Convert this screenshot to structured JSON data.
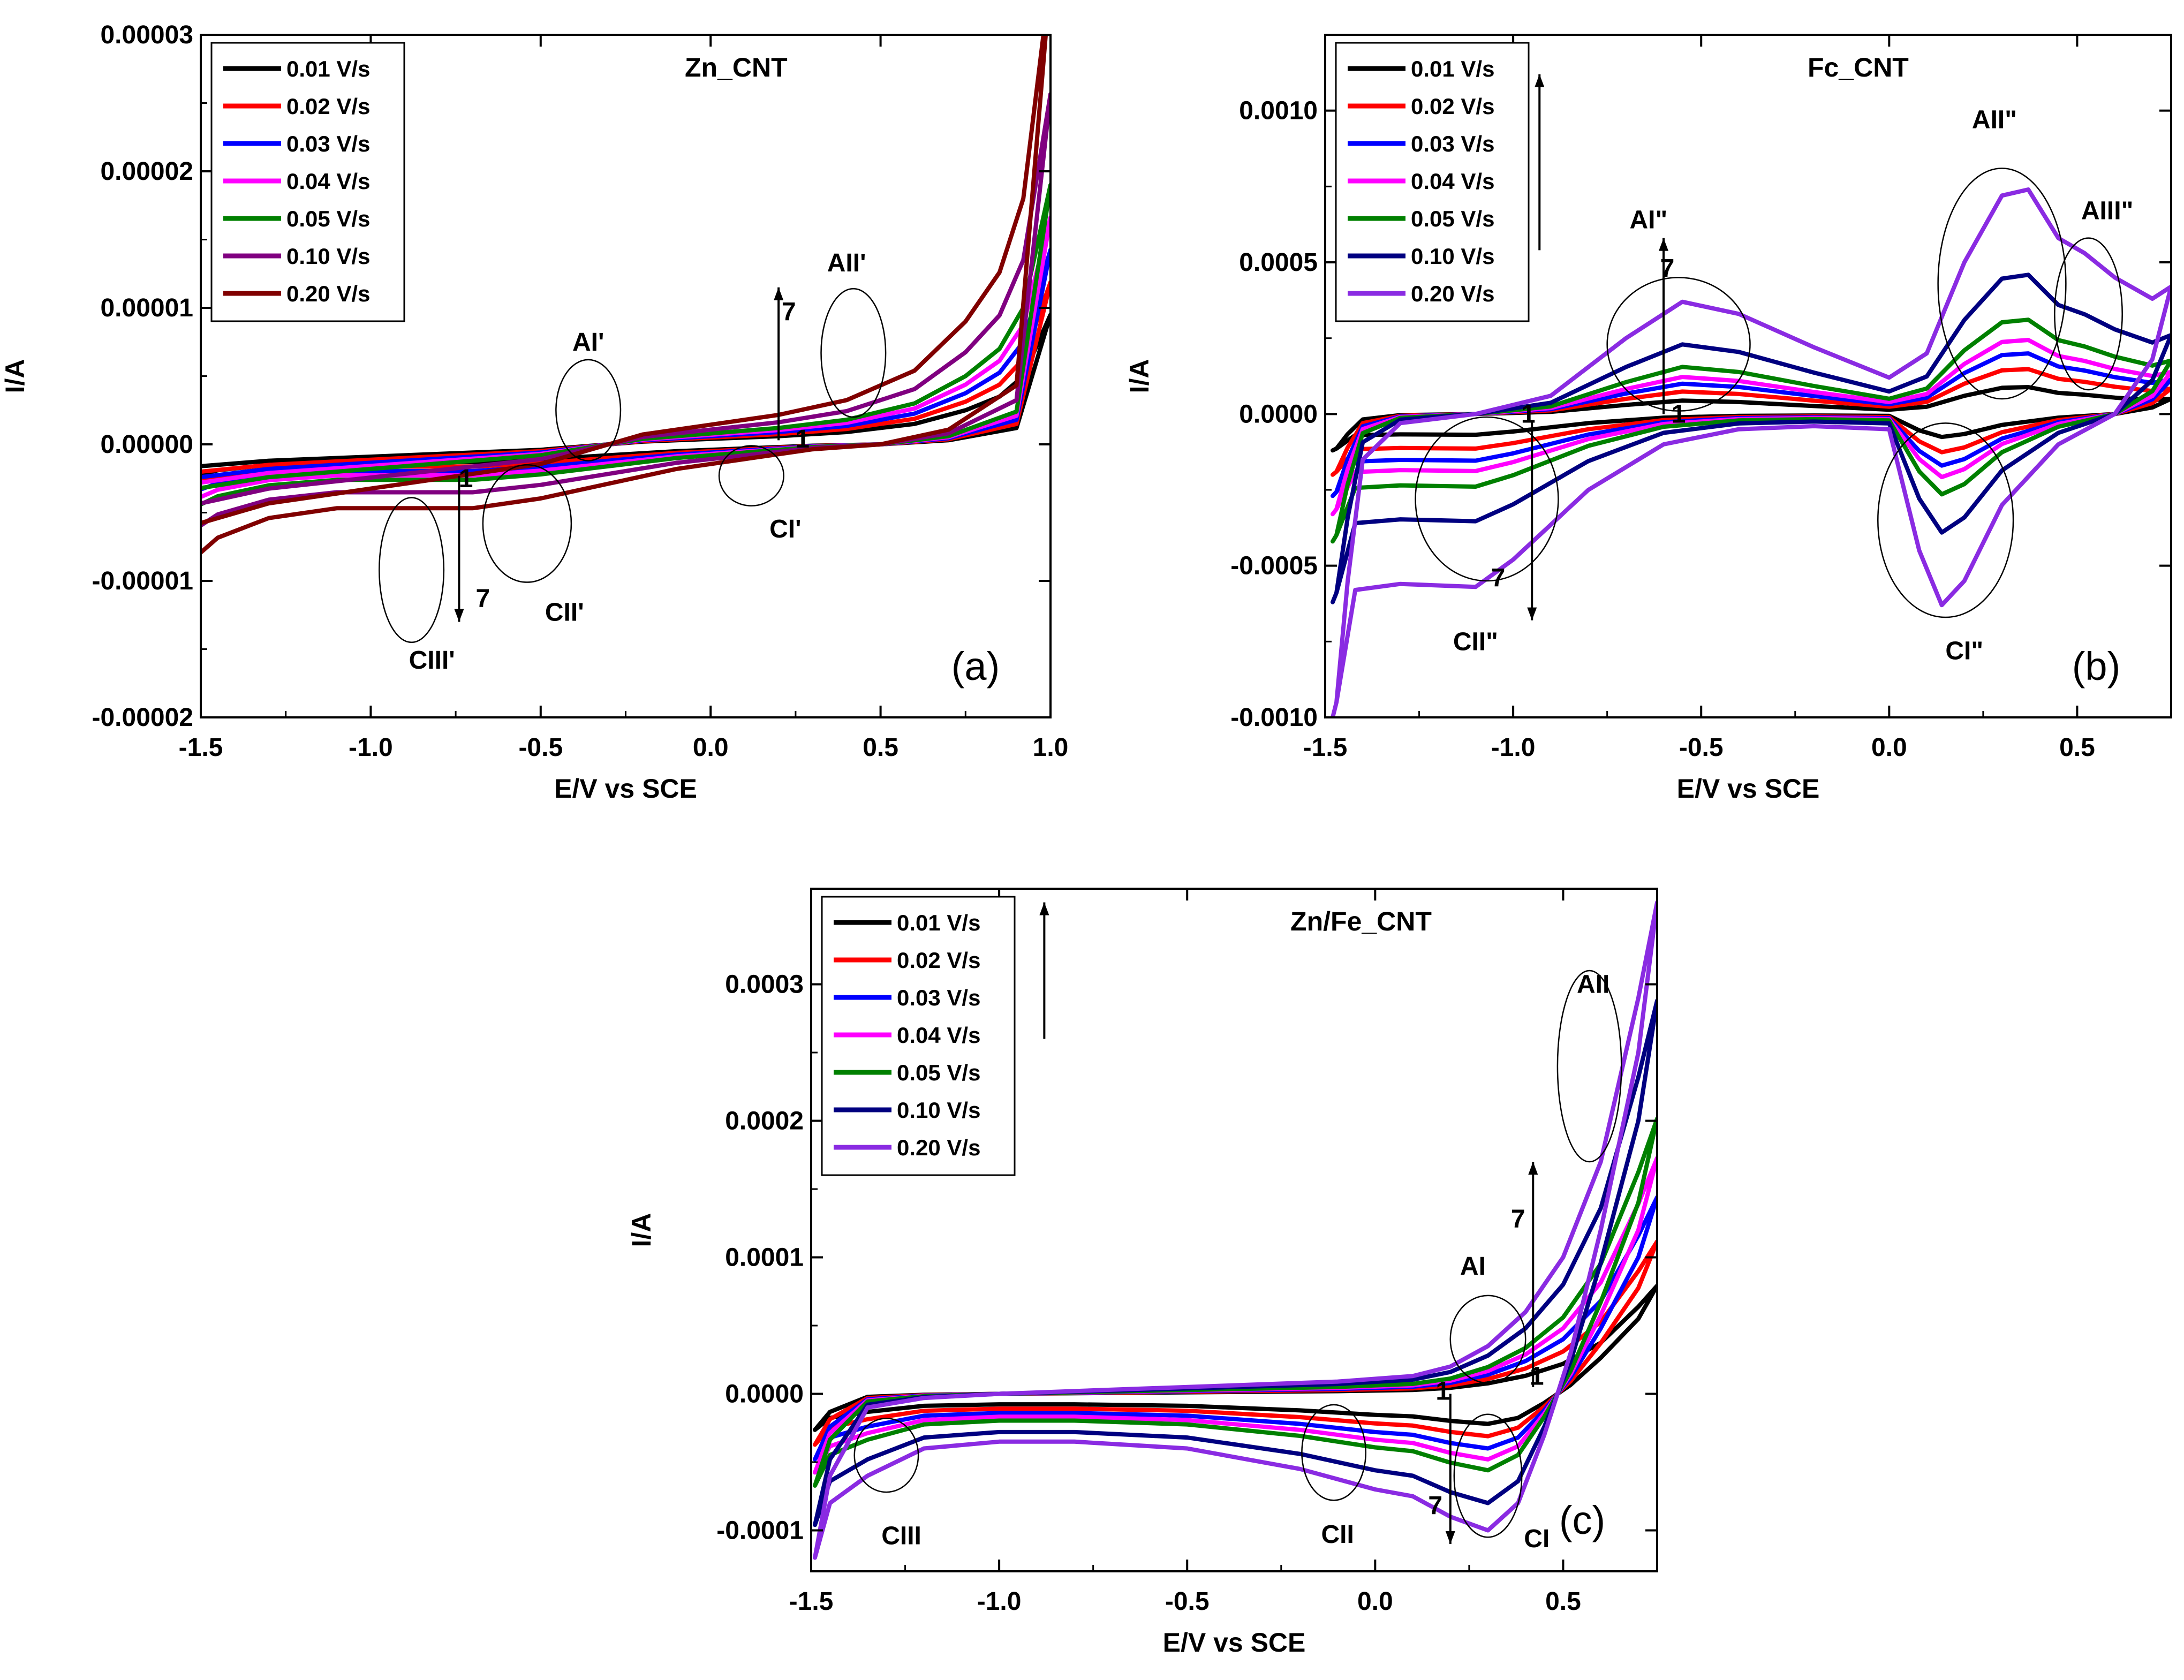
{
  "chart_data": [
    {
      "id": "a",
      "type": "line",
      "title": "Zn_CNT",
      "panel_label": "(a)",
      "xlabel": "E/V vs SCE",
      "ylabel": "I/A",
      "xlim": [
        -1.5,
        1.0
      ],
      "ylim": [
        -2e-05,
        3e-05
      ],
      "xticks": [
        "-1.5",
        "-1.0",
        "-0.5",
        "0.0",
        "0.5",
        "1.0"
      ],
      "xtick_values": [
        -1.5,
        -1.0,
        -0.5,
        0.0,
        0.5,
        1.0
      ],
      "yticks": [
        "-0.00002",
        "-0.00001",
        "0.00000",
        "0.00001",
        "0.00002",
        "0.00003"
      ],
      "ytick_values": [
        -2e-05,
        -1e-05,
        0.0,
        1e-05,
        2e-05,
        3e-05
      ],
      "legend_position": "top-left",
      "series": [
        {
          "name": "0.01 V/s",
          "color": "#000000",
          "scale": 1.0
        },
        {
          "name": "0.02 V/s",
          "color": "#ff0000",
          "scale": 1.25
        },
        {
          "name": "0.03 V/s",
          "color": "#0000ff",
          "scale": 1.5
        },
        {
          "name": "0.04 V/s",
          "color": "#ff00ff",
          "scale": 1.75
        },
        {
          "name": "0.05 V/s",
          "color": "#008000",
          "scale": 2.0
        },
        {
          "name": "0.10 V/s",
          "color": "#800080",
          "scale": 2.7
        },
        {
          "name": "0.20 V/s",
          "color": "#800000",
          "scale": 3.6
        }
      ],
      "base_forward": [
        [
          -1.5,
          -1.6e-06
        ],
        [
          -1.3,
          -1.2e-06
        ],
        [
          -1.0,
          -9e-07
        ],
        [
          -0.7,
          -6e-07
        ],
        [
          -0.5,
          -4e-07
        ],
        [
          -0.35,
          -1e-07
        ],
        [
          -0.2,
          2e-07
        ],
        [
          0.0,
          4e-07
        ],
        [
          0.2,
          6e-07
        ],
        [
          0.4,
          9e-07
        ],
        [
          0.6,
          1.5e-06
        ],
        [
          0.75,
          2.5e-06
        ],
        [
          0.85,
          3.5e-06
        ],
        [
          0.92,
          5e-06
        ],
        [
          1.0,
          9.5e-06
        ]
      ],
      "base_reverse": [
        [
          1.0,
          9.5e-06
        ],
        [
          0.9,
          1.2e-06
        ],
        [
          0.7,
          3e-07
        ],
        [
          0.5,
          0.0
        ],
        [
          0.3,
          -1e-07
        ],
        [
          0.1,
          -3e-07
        ],
        [
          -0.1,
          -5e-07
        ],
        [
          -0.3,
          -8e-07
        ],
        [
          -0.5,
          -1.1e-06
        ],
        [
          -0.7,
          -1.3e-06
        ],
        [
          -0.9,
          -1.3e-06
        ],
        [
          -1.1,
          -1.3e-06
        ],
        [
          -1.3,
          -1.5e-06
        ],
        [
          -1.45,
          -1.9e-06
        ],
        [
          -1.5,
          -2.2e-06
        ]
      ],
      "annotations": [
        {
          "text": "AI'",
          "x": -0.36,
          "y": 7.5e-06
        },
        {
          "text": "AII'",
          "x": 0.4,
          "y": 1.33e-05
        },
        {
          "text": "CI'",
          "x": 0.22,
          "y": -6.2e-06
        },
        {
          "text": "CII'",
          "x": -0.43,
          "y": -1.23e-05
        },
        {
          "text": "CIII'",
          "x": -0.82,
          "y": -1.58e-05
        },
        {
          "text": "7",
          "x": -0.67,
          "y": -1.13e-05
        },
        {
          "text": "7",
          "x": 0.23,
          "y": 9.7e-06
        },
        {
          "text": "1",
          "x": -0.72,
          "y": -2.5e-06
        },
        {
          "text": "1",
          "x": 0.27,
          "y": 4e-07
        }
      ],
      "ellipses": [
        {
          "cx": -0.36,
          "cy": 2.5e-06,
          "rx": 0.095,
          "ry": 3.7e-06
        },
        {
          "cx": 0.42,
          "cy": 6.7e-06,
          "rx": 0.095,
          "ry": 4.7e-06
        },
        {
          "cx": 0.12,
          "cy": -2.3e-06,
          "rx": 0.095,
          "ry": 2.2e-06
        },
        {
          "cx": -0.54,
          "cy": -5.8e-06,
          "rx": 0.13,
          "ry": 4.3e-06
        },
        {
          "cx": -0.88,
          "cy": -9.2e-06,
          "rx": 0.095,
          "ry": 5.3e-06
        }
      ],
      "arrows": [
        {
          "x": 0.2,
          "y1": 3e-07,
          "y2": 1.15e-05
        },
        {
          "x": -0.74,
          "y1": -2.3e-06,
          "y2": -1.3e-05
        }
      ]
    },
    {
      "id": "b",
      "type": "line",
      "title": "Fc_CNT",
      "panel_label": "(b)",
      "xlabel": "E/V vs SCE",
      "ylabel": "I/A",
      "xlim": [
        -1.5,
        0.75
      ],
      "ylim": [
        -0.001,
        0.00125
      ],
      "xticks": [
        "-1.5",
        "-1.0",
        "-0.5",
        "0.0",
        "0.5"
      ],
      "xtick_values": [
        -1.5,
        -1.0,
        -0.5,
        0.0,
        0.5
      ],
      "yticks": [
        "-0.0010",
        "-0.0005",
        "0.0000",
        "0.0005",
        "0.0010"
      ],
      "ytick_values": [
        -0.001,
        -0.0005,
        0.0,
        0.0005,
        0.001
      ],
      "legend_position": "top-left",
      "series": [
        {
          "name": "0.01 V/s",
          "color": "#000000",
          "scale": 0.12
        },
        {
          "name": "0.02 V/s",
          "color": "#ff0000",
          "scale": 0.2
        },
        {
          "name": "0.03 V/s",
          "color": "#0000ff",
          "scale": 0.27
        },
        {
          "name": "0.04 V/s",
          "color": "#ff00ff",
          "scale": 0.33
        },
        {
          "name": "0.05 V/s",
          "color": "#008000",
          "scale": 0.42
        },
        {
          "name": "0.10 V/s",
          "color": "#000080",
          "scale": 0.62
        },
        {
          "name": "0.20 V/s",
          "color": "#8a2be2",
          "scale": 1.0
        }
      ],
      "base_forward": [
        [
          -1.47,
          -0.00095
        ],
        [
          -1.44,
          -0.00055
        ],
        [
          -1.4,
          -0.00015
        ],
        [
          -1.3,
          -3e-05
        ],
        [
          -1.1,
          0.0
        ],
        [
          -0.9,
          6e-05
        ],
        [
          -0.7,
          0.00025
        ],
        [
          -0.55,
          0.00037
        ],
        [
          -0.4,
          0.00033
        ],
        [
          -0.2,
          0.00022
        ],
        [
          0.0,
          0.00012
        ],
        [
          0.1,
          0.0002
        ],
        [
          0.2,
          0.0005
        ],
        [
          0.3,
          0.00072
        ],
        [
          0.37,
          0.00074
        ],
        [
          0.45,
          0.00058
        ],
        [
          0.52,
          0.00053
        ],
        [
          0.6,
          0.00045
        ],
        [
          0.7,
          0.00038
        ],
        [
          0.75,
          0.00042
        ]
      ],
      "base_reverse": [
        [
          0.75,
          0.00042
        ],
        [
          0.7,
          0.00018
        ],
        [
          0.6,
          0.0
        ],
        [
          0.45,
          -0.0001
        ],
        [
          0.3,
          -0.0003
        ],
        [
          0.2,
          -0.00055
        ],
        [
          0.14,
          -0.00063
        ],
        [
          0.08,
          -0.00045
        ],
        [
          0.0,
          -5e-05
        ],
        [
          -0.2,
          -4e-05
        ],
        [
          -0.4,
          -5e-05
        ],
        [
          -0.6,
          -0.0001
        ],
        [
          -0.8,
          -0.00025
        ],
        [
          -1.0,
          -0.00048
        ],
        [
          -1.1,
          -0.00057
        ],
        [
          -1.3,
          -0.00056
        ],
        [
          -1.42,
          -0.00058
        ],
        [
          -1.47,
          -0.00095
        ],
        [
          -1.48,
          -0.001
        ]
      ],
      "annotations": [
        {
          "text": "AI\"",
          "x": -0.64,
          "y": 0.00064
        },
        {
          "text": "AII\"",
          "x": 0.28,
          "y": 0.00097
        },
        {
          "text": "AIII\"",
          "x": 0.58,
          "y": 0.00067
        },
        {
          "text": "CI\"",
          "x": 0.2,
          "y": -0.00078
        },
        {
          "text": "CII\"",
          "x": -1.1,
          "y": -0.00075
        },
        {
          "text": "7",
          "x": -0.59,
          "y": 0.00048
        },
        {
          "text": "7",
          "x": -1.04,
          "y": -0.00054
        },
        {
          "text": "1",
          "x": -0.56,
          "y": 0.0
        },
        {
          "text": "1",
          "x": -0.96,
          "y": 0.0
        }
      ],
      "ellipses": [
        {
          "cx": -0.56,
          "cy": 0.00023,
          "rx": 0.19,
          "ry": 0.00022
        },
        {
          "cx": 0.3,
          "cy": 0.00043,
          "rx": 0.17,
          "ry": 0.00038
        },
        {
          "cx": 0.53,
          "cy": 0.00033,
          "rx": 0.09,
          "ry": 0.00025
        },
        {
          "cx": 0.15,
          "cy": -0.00035,
          "rx": 0.18,
          "ry": 0.00032
        },
        {
          "cx": -1.07,
          "cy": -0.00028,
          "rx": 0.19,
          "ry": 0.00027
        }
      ],
      "arrows": [
        {
          "x": -0.6,
          "y1": 0.0,
          "y2": 0.00058
        },
        {
          "x": -0.95,
          "y1": -2e-05,
          "y2": -0.00068
        },
        {
          "x": -0.95,
          "y1": 0.0,
          "y2": 0.0
        },
        {
          "x": -0.93,
          "y1": 0.00054,
          "y2": 0.00112
        }
      ]
    },
    {
      "id": "c",
      "type": "line",
      "title": "Zn/Fe_CNT",
      "panel_label": "(c)",
      "xlabel": "E/V vs SCE",
      "ylabel": "I/A",
      "xlim": [
        -1.5,
        0.75
      ],
      "ylim": [
        -0.00013,
        0.00037
      ],
      "xticks": [
        "-1.5",
        "-1.0",
        "-0.5",
        "0.0",
        "0.5"
      ],
      "xtick_values": [
        -1.5,
        -1.0,
        -0.5,
        0.0,
        0.5
      ],
      "yticks": [
        "-0.0001",
        "0.0000",
        "0.0001",
        "0.0002",
        "0.0003"
      ],
      "ytick_values": [
        -0.0001,
        0.0,
        0.0001,
        0.0002,
        0.0003
      ],
      "legend_position": "top-left",
      "series": [
        {
          "name": "0.01 V/s",
          "color": "#000000",
          "scale": 0.22
        },
        {
          "name": "0.02 V/s",
          "color": "#ff0000",
          "scale": 0.31
        },
        {
          "name": "0.03 V/s",
          "color": "#0000ff",
          "scale": 0.4
        },
        {
          "name": "0.04 V/s",
          "color": "#ff00ff",
          "scale": 0.48
        },
        {
          "name": "0.05 V/s",
          "color": "#008000",
          "scale": 0.56
        },
        {
          "name": "0.10 V/s",
          "color": "#000080",
          "scale": 0.8
        },
        {
          "name": "0.20 V/s",
          "color": "#8a2be2",
          "scale": 1.0
        }
      ],
      "base_forward": [
        [
          -1.49,
          -0.00012
        ],
        [
          -1.45,
          -6e-05
        ],
        [
          -1.35,
          -1e-05
        ],
        [
          -1.2,
          -3e-06
        ],
        [
          -1.0,
          0.0
        ],
        [
          -0.7,
          3e-06
        ],
        [
          -0.4,
          6e-06
        ],
        [
          -0.1,
          9e-06
        ],
        [
          0.1,
          1.3e-05
        ],
        [
          0.2,
          2e-05
        ],
        [
          0.3,
          3.5e-05
        ],
        [
          0.4,
          6e-05
        ],
        [
          0.5,
          0.0001
        ],
        [
          0.6,
          0.00017
        ],
        [
          0.7,
          0.00029
        ],
        [
          0.75,
          0.00036
        ]
      ],
      "base_reverse": [
        [
          0.75,
          0.00036
        ],
        [
          0.7,
          0.00025
        ],
        [
          0.6,
          0.00012
        ],
        [
          0.52,
          3e-05
        ],
        [
          0.45,
          -3e-05
        ],
        [
          0.38,
          -8e-05
        ],
        [
          0.3,
          -0.0001
        ],
        [
          0.2,
          -9e-05
        ],
        [
          0.1,
          -7.5e-05
        ],
        [
          0.0,
          -7e-05
        ],
        [
          -0.2,
          -5.5e-05
        ],
        [
          -0.5,
          -4e-05
        ],
        [
          -0.8,
          -3.5e-05
        ],
        [
          -1.0,
          -3.5e-05
        ],
        [
          -1.2,
          -4e-05
        ],
        [
          -1.35,
          -6e-05
        ],
        [
          -1.45,
          -8e-05
        ],
        [
          -1.49,
          -0.00012
        ]
      ],
      "annotations": [
        {
          "text": "AI",
          "x": 0.26,
          "y": 9.35e-05
        },
        {
          "text": "AII",
          "x": 0.58,
          "y": 0.0003
        },
        {
          "text": "CI",
          "x": 0.43,
          "y": -0.000106
        },
        {
          "text": "CII",
          "x": -0.1,
          "y": -0.000103
        },
        {
          "text": "CIII",
          "x": -1.26,
          "y": -0.000104
        },
        {
          "text": "7",
          "x": 0.38,
          "y": 0.000128
        },
        {
          "text": "7",
          "x": 0.16,
          "y": -8.2e-05
        },
        {
          "text": "1",
          "x": 0.43,
          "y": 1.3e-05
        },
        {
          "text": "1",
          "x": 0.18,
          "y": 2e-06
        }
      ],
      "ellipses": [
        {
          "cx": 0.3,
          "cy": 4e-05,
          "rx": 0.1,
          "ry": 3.2e-05
        },
        {
          "cx": 0.57,
          "cy": 0.00024,
          "rx": 0.085,
          "ry": 7e-05
        },
        {
          "cx": 0.3,
          "cy": -6e-05,
          "rx": 0.09,
          "ry": 4.5e-05
        },
        {
          "cx": -0.11,
          "cy": -4.3e-05,
          "rx": 0.085,
          "ry": 3.5e-05
        },
        {
          "cx": -1.3,
          "cy": -4.5e-05,
          "rx": 0.085,
          "ry": 2.7e-05
        }
      ],
      "arrows": [
        {
          "x": 0.42,
          "y1": 5e-06,
          "y2": 0.00017
        },
        {
          "x": 0.2,
          "y1": 0.0,
          "y2": -0.00011
        },
        {
          "x": -0.88,
          "y1": 0.00026,
          "y2": 0.00036
        }
      ]
    }
  ]
}
